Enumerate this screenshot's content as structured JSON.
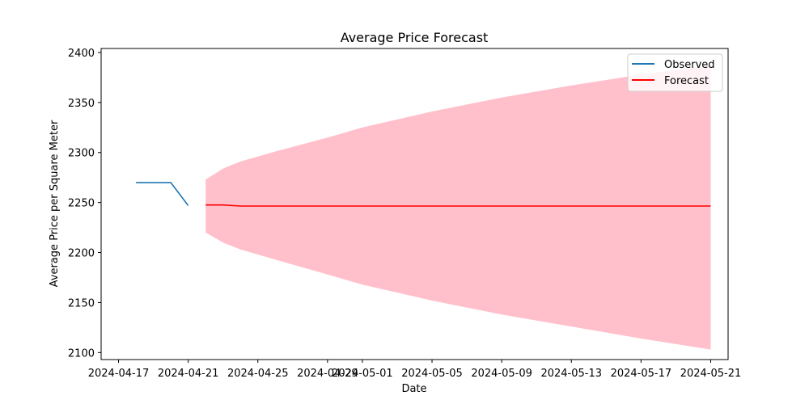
{
  "chart_data": {
    "type": "line",
    "title": "Average Price Forecast",
    "xlabel": "Date",
    "ylabel": "Average Price per Square Meter",
    "xlim": [
      "2024-04-16",
      "2024-05-22"
    ],
    "ylim": [
      2093,
      2404
    ],
    "x_ticks": [
      "2024-04-17",
      "2024-04-21",
      "2024-04-25",
      "2024-04-29",
      "2024-05-01",
      "2024-05-05",
      "2024-05-09",
      "2024-05-13",
      "2024-05-17",
      "2024-05-21"
    ],
    "y_ticks": [
      2100,
      2150,
      2200,
      2250,
      2300,
      2350,
      2400
    ],
    "grid": false,
    "legend_position": "top-right",
    "colors": {
      "observed": "#1f77b4",
      "forecast": "#ff0000",
      "band": "#ffc0cb"
    },
    "series": [
      {
        "name": "Observed",
        "x": [
          "2024-04-18",
          "2024-04-19",
          "2024-04-20",
          "2024-04-21"
        ],
        "y": [
          2270,
          2270,
          2270,
          2247
        ]
      },
      {
        "name": "Forecast",
        "x": [
          "2024-04-22",
          "2024-04-23",
          "2024-04-24",
          "2024-04-25",
          "2024-05-21"
        ],
        "y": [
          2247.5,
          2247.5,
          2246.5,
          2246.5,
          2246.5
        ]
      }
    ],
    "confidence_band": {
      "x": [
        "2024-04-22",
        "2024-04-23",
        "2024-04-24",
        "2024-04-26",
        "2024-04-29",
        "2024-05-01",
        "2024-05-05",
        "2024-05-09",
        "2024-05-13",
        "2024-05-17",
        "2024-05-21"
      ],
      "lower": [
        2220,
        2210,
        2203,
        2193,
        2178,
        2168,
        2152,
        2138,
        2126,
        2114,
        2103
      ],
      "upper": [
        2273,
        2284,
        2291,
        2301,
        2315,
        2325,
        2341,
        2355,
        2367,
        2378,
        2387
      ]
    }
  }
}
